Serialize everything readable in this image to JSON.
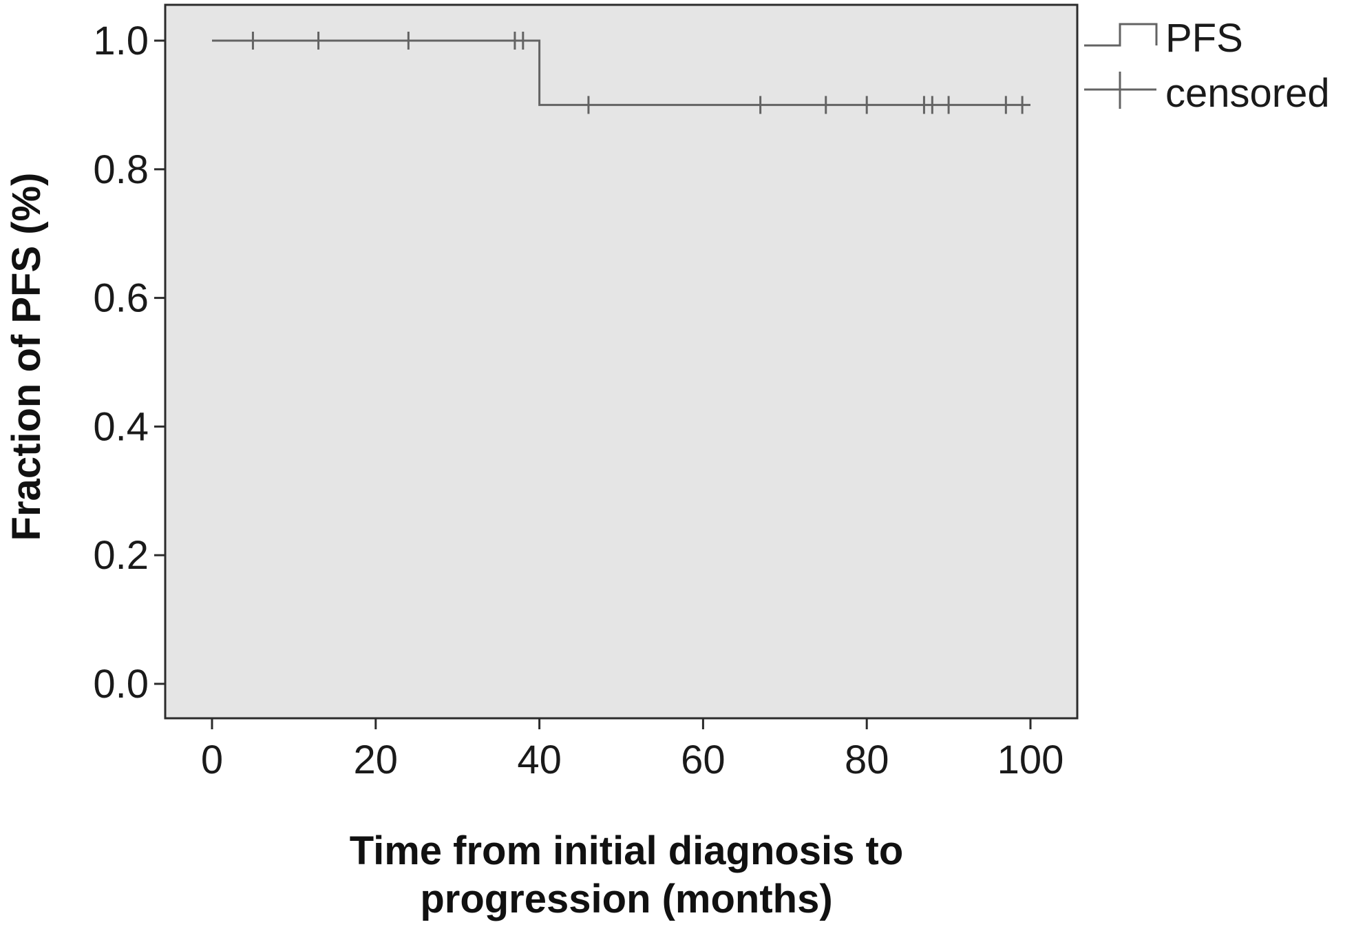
{
  "chart_data": {
    "type": "line",
    "subtype": "kaplan-meier step",
    "xlabel_lines": [
      "Time from initial diagnosis to",
      "progression (months)"
    ],
    "ylabel": "Fraction of PFS (%)",
    "xlim": [
      0,
      100
    ],
    "ylim": [
      0,
      1.0
    ],
    "x_ticks": [
      0,
      20,
      40,
      60,
      80,
      100
    ],
    "x_tick_labels": [
      "0",
      "20",
      "40",
      "60",
      "80",
      "100"
    ],
    "y_ticks": [
      0,
      0.2,
      0.4,
      0.6,
      0.8,
      1.0
    ],
    "y_tick_labels": [
      "0.0",
      "0.2",
      "0.4",
      "0.6",
      "0.8",
      "1.0"
    ],
    "grid": false,
    "plot_background": "#e5e5e5",
    "line_color": "#636363",
    "legend_position": "top-right, outside plot",
    "legend": [
      {
        "label": "PFS",
        "marker": "step"
      },
      {
        "label": "censored",
        "marker": "cross"
      }
    ],
    "series": [
      {
        "name": "PFS",
        "steps": [
          {
            "x": 0,
            "y": 1.0
          },
          {
            "x": 40,
            "y": 0.9
          },
          {
            "x": 100,
            "y": 0.9
          }
        ]
      }
    ],
    "censored": [
      {
        "x": 5,
        "y": 1.0
      },
      {
        "x": 13,
        "y": 1.0
      },
      {
        "x": 24,
        "y": 1.0
      },
      {
        "x": 37,
        "y": 1.0
      },
      {
        "x": 38,
        "y": 1.0
      },
      {
        "x": 46,
        "y": 0.9
      },
      {
        "x": 67,
        "y": 0.9
      },
      {
        "x": 75,
        "y": 0.9
      },
      {
        "x": 80,
        "y": 0.9
      },
      {
        "x": 87,
        "y": 0.9
      },
      {
        "x": 88,
        "y": 0.9
      },
      {
        "x": 90,
        "y": 0.9
      },
      {
        "x": 97,
        "y": 0.9
      },
      {
        "x": 99,
        "y": 0.9
      }
    ]
  }
}
